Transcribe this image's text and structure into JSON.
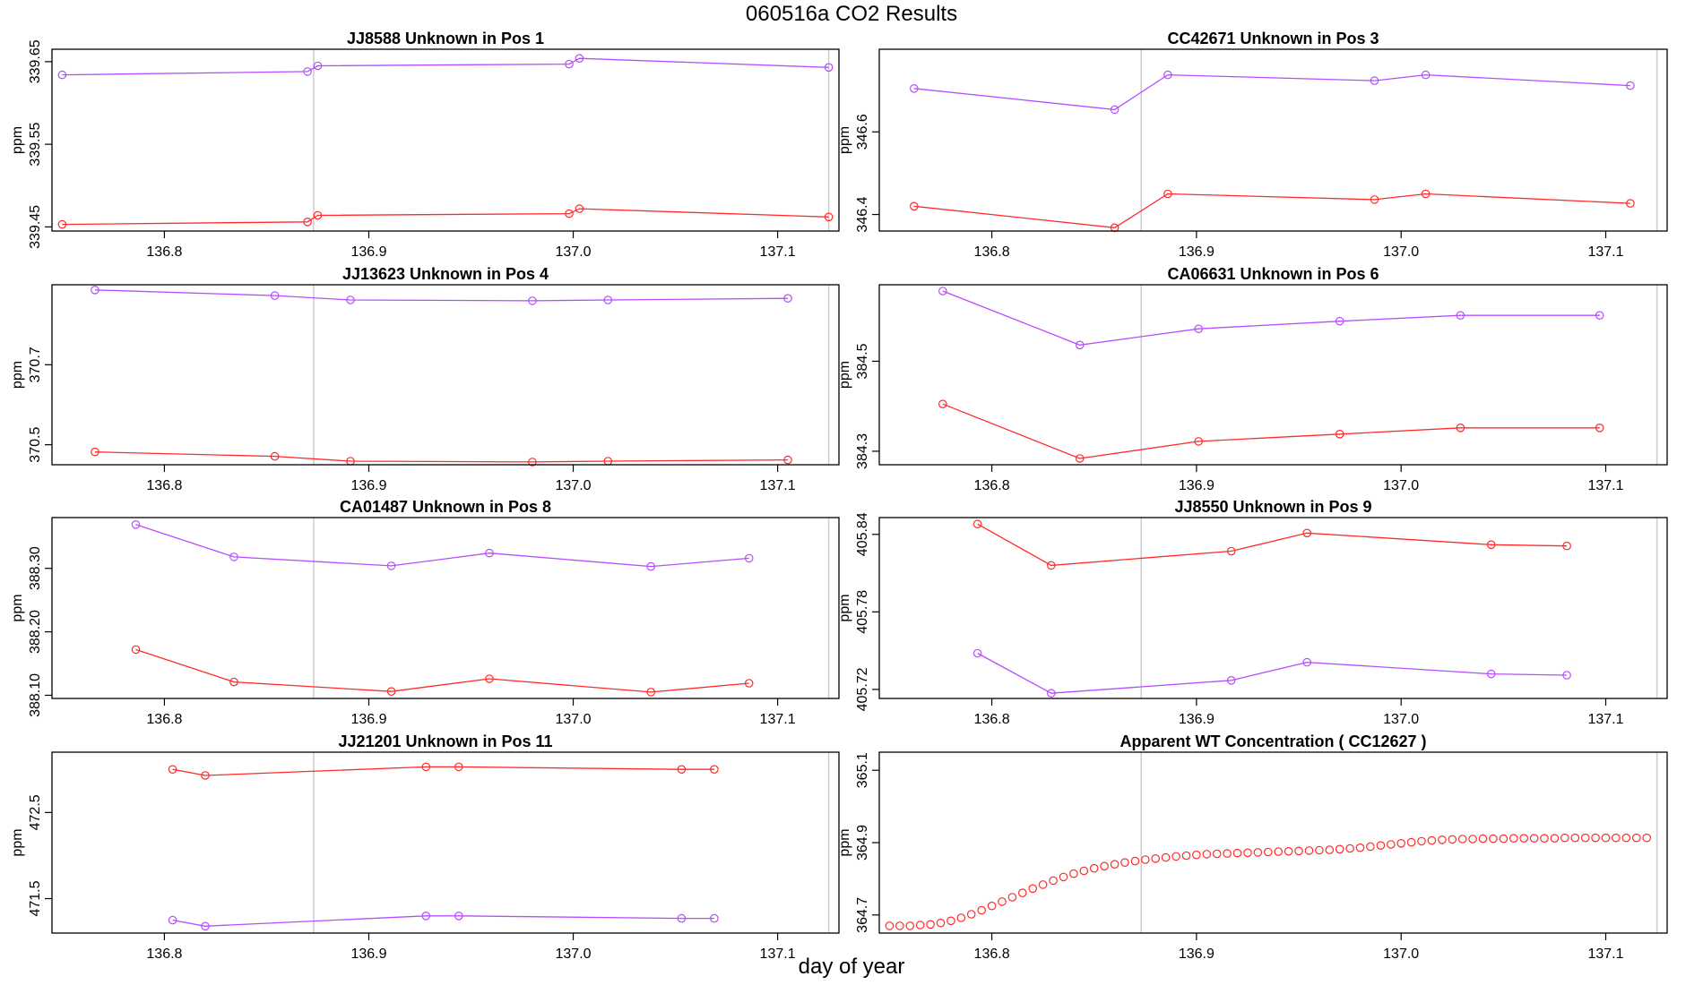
{
  "figure": {
    "title": "060516a  CO2 Results",
    "xlabel": "day of year"
  },
  "colors": {
    "series_a": "#ff2a2a",
    "series_b": "#b44dff",
    "vline": "#cccccc",
    "axis": "#000000"
  },
  "chart_data": [
    {
      "type": "line",
      "title": "JJ8588    Unknown in Pos 1",
      "ylabel": "ppm",
      "xlim": [
        136.745,
        137.13
      ],
      "ylim": [
        339.445,
        339.665
      ],
      "xticks": [
        136.8,
        136.9,
        137.0,
        137.1
      ],
      "yticks": [
        339.45,
        339.55,
        339.65
      ],
      "xtick_labels": [
        "136.8",
        "136.9",
        "137.0",
        "137.1"
      ],
      "ytick_labels": [
        "339.45",
        "339.55",
        "339.65"
      ],
      "vlines": [
        136.873,
        137.125
      ],
      "series": [
        {
          "name": "upper",
          "color": "#b44dff",
          "x": [
            136.75,
            136.87,
            136.875,
            136.998,
            137.003,
            137.125
          ],
          "y": [
            339.634,
            339.638,
            339.645,
            339.647,
            339.654,
            339.643
          ]
        },
        {
          "name": "lower",
          "color": "#ff2a2a",
          "x": [
            136.75,
            136.87,
            136.875,
            136.998,
            137.003,
            137.125
          ],
          "y": [
            339.453,
            339.456,
            339.464,
            339.466,
            339.472,
            339.462
          ]
        }
      ]
    },
    {
      "type": "line",
      "title": "CC42671    Unknown in Pos 3",
      "ylabel": "ppm",
      "xlim": [
        136.745,
        137.13
      ],
      "ylim": [
        346.36,
        346.8
      ],
      "xticks": [
        136.8,
        136.9,
        137.0,
        137.1
      ],
      "yticks": [
        346.4,
        346.6
      ],
      "xtick_labels": [
        "136.8",
        "136.9",
        "137.0",
        "137.1"
      ],
      "ytick_labels": [
        "346.4",
        "346.6"
      ],
      "vlines": [
        136.873,
        137.125
      ],
      "series": [
        {
          "name": "upper",
          "color": "#b44dff",
          "x": [
            136.762,
            136.86,
            136.886,
            136.987,
            137.012,
            137.112
          ],
          "y": [
            346.705,
            346.654,
            346.738,
            346.724,
            346.738,
            346.712
          ]
        },
        {
          "name": "lower",
          "color": "#ff2a2a",
          "x": [
            136.762,
            136.86,
            136.886,
            136.987,
            137.012,
            137.112
          ],
          "y": [
            346.42,
            346.368,
            346.45,
            346.436,
            346.45,
            346.427
          ]
        }
      ]
    },
    {
      "type": "line",
      "title": "JJ13623    Unknown in Pos 4",
      "ylabel": "ppm",
      "xlim": [
        136.745,
        137.13
      ],
      "ylim": [
        370.45,
        370.9
      ],
      "xticks": [
        136.8,
        136.9,
        137.0,
        137.1
      ],
      "yticks": [
        370.5,
        370.7
      ],
      "xtick_labels": [
        "136.8",
        "136.9",
        "137.0",
        "137.1"
      ],
      "ytick_labels": [
        "370.5",
        "370.7"
      ],
      "vlines": [
        136.873,
        137.125
      ],
      "series": [
        {
          "name": "upper",
          "color": "#b44dff",
          "x": [
            136.766,
            136.854,
            136.891,
            136.98,
            137.017,
            137.105
          ],
          "y": [
            370.887,
            370.873,
            370.862,
            370.86,
            370.862,
            370.866
          ]
        },
        {
          "name": "lower",
          "color": "#ff2a2a",
          "x": [
            136.766,
            136.854,
            136.891,
            136.98,
            137.017,
            137.105
          ],
          "y": [
            370.482,
            370.471,
            370.459,
            370.457,
            370.459,
            370.462
          ]
        }
      ]
    },
    {
      "type": "line",
      "title": "CA06631    Unknown in Pos 6",
      "ylabel": "ppm",
      "xlim": [
        136.745,
        137.13
      ],
      "ylim": [
        384.27,
        384.67
      ],
      "xticks": [
        136.8,
        136.9,
        137.0,
        137.1
      ],
      "yticks": [
        384.3,
        384.5
      ],
      "xtick_labels": [
        "136.8",
        "136.9",
        "137.0",
        "137.1"
      ],
      "ytick_labels": [
        "384.3",
        "384.5"
      ],
      "vlines": [
        136.873,
        137.125
      ],
      "series": [
        {
          "name": "upper",
          "color": "#b44dff",
          "x": [
            136.776,
            136.843,
            136.901,
            136.97,
            137.029,
            137.097
          ],
          "y": [
            384.656,
            384.536,
            384.572,
            384.589,
            384.602,
            384.602
          ]
        },
        {
          "name": "lower",
          "color": "#ff2a2a",
          "x": [
            136.776,
            136.843,
            136.901,
            136.97,
            137.029,
            137.097
          ],
          "y": [
            384.405,
            384.284,
            384.322,
            384.338,
            384.352,
            384.352
          ]
        }
      ]
    },
    {
      "type": "line",
      "title": "CA01487    Unknown in Pos 8",
      "ylabel": "ppm",
      "xlim": [
        136.745,
        137.13
      ],
      "ylim": [
        388.095,
        388.38
      ],
      "xticks": [
        136.8,
        136.9,
        137.0,
        137.1
      ],
      "yticks": [
        388.1,
        388.2,
        388.3
      ],
      "xtick_labels": [
        "136.8",
        "136.9",
        "137.0",
        "137.1"
      ],
      "ytick_labels": [
        "388.10",
        "388.20",
        "388.30"
      ],
      "vlines": [
        136.873,
        137.125
      ],
      "series": [
        {
          "name": "upper",
          "color": "#b44dff",
          "x": [
            136.786,
            136.834,
            136.911,
            136.959,
            137.038,
            137.086
          ],
          "y": [
            388.369,
            388.318,
            388.304,
            388.324,
            388.303,
            388.316
          ]
        },
        {
          "name": "lower",
          "color": "#ff2a2a",
          "x": [
            136.786,
            136.834,
            136.911,
            136.959,
            137.038,
            137.086
          ],
          "y": [
            388.172,
            388.121,
            388.106,
            388.126,
            388.105,
            388.119
          ]
        }
      ]
    },
    {
      "type": "line",
      "title": "JJ8550    Unknown in Pos 9",
      "ylabel": "ppm",
      "xlim": [
        136.745,
        137.13
      ],
      "ylim": [
        405.713,
        405.853
      ],
      "xticks": [
        136.8,
        136.9,
        137.0,
        137.1
      ],
      "yticks": [
        405.72,
        405.78,
        405.84
      ],
      "xtick_labels": [
        "136.8",
        "136.9",
        "137.0",
        "137.1"
      ],
      "ytick_labels": [
        "405.72",
        "405.78",
        "405.84"
      ],
      "vlines": [
        136.873,
        137.125
      ],
      "series": [
        {
          "name": "upper",
          "color": "#ff2a2a",
          "x": [
            136.793,
            136.829,
            136.917,
            136.954,
            137.044,
            137.081
          ],
          "y": [
            405.848,
            405.816,
            405.827,
            405.841,
            405.832,
            405.831
          ]
        },
        {
          "name": "lower",
          "color": "#b44dff",
          "x": [
            136.793,
            136.829,
            136.917,
            136.954,
            137.044,
            137.081
          ],
          "y": [
            405.748,
            405.717,
            405.727,
            405.741,
            405.732,
            405.731
          ]
        }
      ]
    },
    {
      "type": "line",
      "title": "JJ21201    Unknown in Pos 11",
      "ylabel": "ppm",
      "xlim": [
        136.745,
        137.13
      ],
      "ylim": [
        471.1,
        473.2
      ],
      "xticks": [
        136.8,
        136.9,
        137.0,
        137.1
      ],
      "yticks": [
        471.5,
        472.5
      ],
      "xtick_labels": [
        "136.8",
        "136.9",
        "137.0",
        "137.1"
      ],
      "ytick_labels": [
        "471.5",
        "472.5"
      ],
      "vlines": [
        136.873,
        137.125
      ],
      "series": [
        {
          "name": "upper",
          "color": "#ff2a2a",
          "x": [
            136.804,
            136.82,
            136.928,
            136.944,
            137.053,
            137.069
          ],
          "y": [
            473.0,
            472.93,
            473.03,
            473.03,
            473.0,
            473.0
          ]
        },
        {
          "name": "lower",
          "color": "#b44dff",
          "x": [
            136.804,
            136.82,
            136.928,
            136.944,
            137.053,
            137.069
          ],
          "y": [
            471.25,
            471.18,
            471.3,
            471.3,
            471.27,
            471.27
          ]
        }
      ]
    },
    {
      "type": "scatter",
      "title": "Apparent WT Concentration ( CC12627 )",
      "ylabel": "ppm",
      "xlim": [
        136.745,
        137.13
      ],
      "ylim": [
        364.65,
        365.15
      ],
      "xticks": [
        136.8,
        136.9,
        137.0,
        137.1
      ],
      "yticks": [
        364.7,
        364.9,
        365.1
      ],
      "xtick_labels": [
        "136.8",
        "136.9",
        "137.0",
        "137.1"
      ],
      "ytick_labels": [
        "364.7",
        "364.9",
        "365.1"
      ],
      "vlines": [
        136.873,
        137.125
      ],
      "series": [
        {
          "name": "WT",
          "color": "#ff2a2a",
          "x": [
            136.75,
            136.755,
            136.76,
            136.765,
            136.77,
            136.775,
            136.78,
            136.785,
            136.79,
            136.795,
            136.8,
            136.805,
            136.81,
            136.815,
            136.82,
            136.825,
            136.83,
            136.835,
            136.84,
            136.845,
            136.85,
            136.855,
            136.86,
            136.865,
            136.87,
            136.875,
            136.88,
            136.885,
            136.89,
            136.895,
            136.9,
            136.905,
            136.91,
            136.915,
            136.92,
            136.925,
            136.93,
            136.935,
            136.94,
            136.945,
            136.95,
            136.955,
            136.96,
            136.965,
            136.97,
            136.975,
            136.98,
            136.985,
            136.99,
            136.995,
            137.0,
            137.005,
            137.01,
            137.015,
            137.02,
            137.025,
            137.03,
            137.035,
            137.04,
            137.045,
            137.05,
            137.055,
            137.06,
            137.065,
            137.07,
            137.075,
            137.08,
            137.085,
            137.09,
            137.095,
            137.1,
            137.105,
            137.11,
            137.115,
            137.12
          ],
          "y": [
            364.67,
            364.67,
            364.67,
            364.672,
            364.674,
            364.678,
            364.684,
            364.692,
            364.702,
            364.713,
            364.725,
            364.737,
            364.749,
            364.761,
            364.773,
            364.784,
            364.795,
            364.805,
            364.814,
            364.822,
            364.829,
            364.835,
            364.84,
            364.845,
            364.849,
            364.853,
            364.856,
            364.859,
            364.862,
            364.864,
            364.866,
            364.868,
            364.869,
            364.87,
            364.871,
            364.872,
            364.873,
            364.874,
            364.875,
            364.876,
            364.877,
            364.878,
            364.879,
            364.88,
            364.882,
            364.884,
            364.886,
            364.889,
            364.892,
            364.895,
            364.898,
            364.901,
            364.904,
            364.906,
            364.908,
            364.909,
            364.91,
            364.91,
            364.911,
            364.911,
            364.911,
            364.912,
            364.912,
            364.912,
            364.912,
            364.912,
            364.913,
            364.913,
            364.913,
            364.913,
            364.913,
            364.913,
            364.913,
            364.913,
            364.913
          ]
        }
      ]
    }
  ]
}
